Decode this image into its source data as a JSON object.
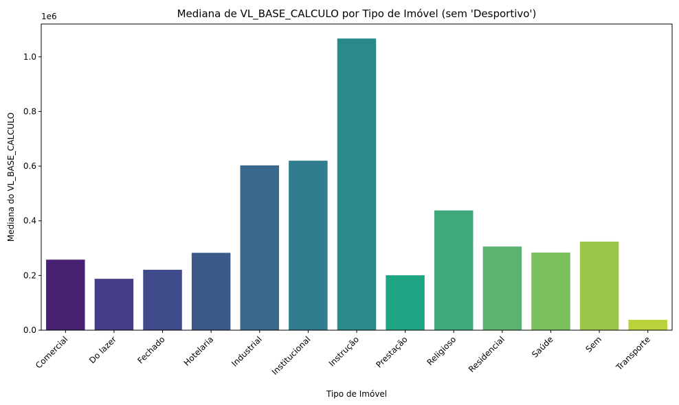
{
  "chart_data": {
    "type": "bar",
    "title": "Mediana de VL_BASE_CALCULO por Tipo de Imóvel (sem 'Desportivo')",
    "xlabel": "Tipo de Imóvel",
    "ylabel": "Mediana do VL_BASE_CALCULO",
    "y_offset_label": "1e6",
    "ylim": [
      0,
      1120000
    ],
    "yticks": [
      0,
      200000,
      400000,
      600000,
      800000,
      1000000
    ],
    "ytick_labels": [
      "0.0",
      "0.2",
      "0.4",
      "0.6",
      "0.8",
      "1.0"
    ],
    "grid": false,
    "legend": "none",
    "categories": [
      "Comercial",
      "Do lazer",
      "Fechado",
      "Hotelaria",
      "Industrial",
      "Institucional",
      "Instrução",
      "Prestação",
      "Religioso",
      "Residencial",
      "Saúde",
      "Sem",
      "Transporte"
    ],
    "values": [
      258000,
      188000,
      221000,
      283000,
      603000,
      620000,
      1067000,
      201000,
      438000,
      306000,
      284000,
      324000,
      38000
    ],
    "colors": [
      "#482173",
      "#433e85",
      "#3e4a89",
      "#3b5a8a",
      "#38698c",
      "#2f7d8e",
      "#2a8a8b",
      "#21a685",
      "#3fa87c",
      "#5bb370",
      "#7bc05f",
      "#9cc64a",
      "#bcd23a"
    ]
  }
}
